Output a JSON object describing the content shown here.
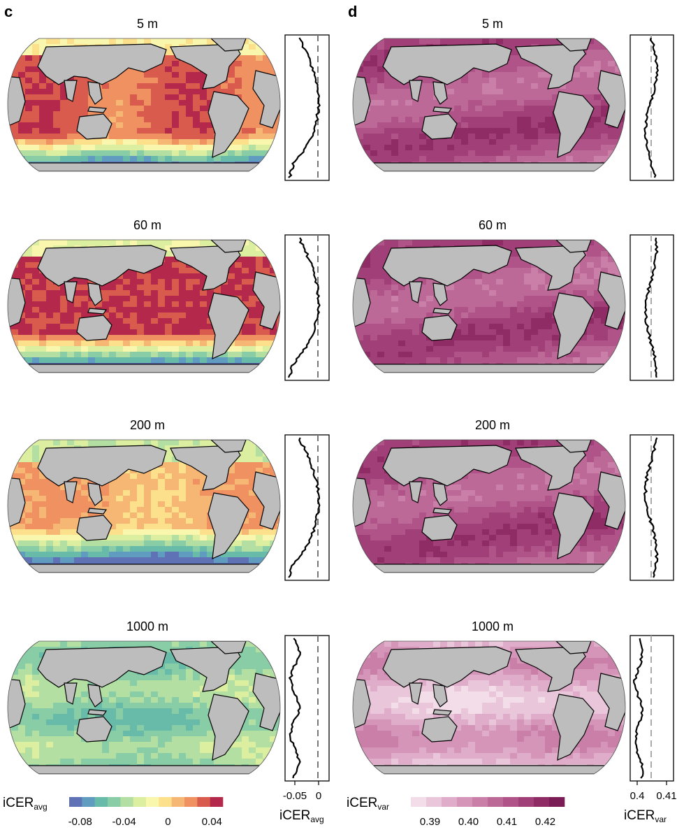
{
  "panels": [
    {
      "letter": "c",
      "variable": "avg",
      "depths": [
        "5 m",
        "60 m",
        "200 m",
        "1000 m"
      ],
      "colorbar": {
        "label_main": "iCER",
        "label_sub": "avg",
        "ticks": [
          "-0.08",
          "-0.04",
          "0",
          "0.04"
        ],
        "tick_values": [
          -0.08,
          -0.04,
          0,
          0.04
        ],
        "range": [
          -0.09,
          0.05
        ],
        "colors": [
          "#5e72b5",
          "#5f9cc0",
          "#69bba9",
          "#88cda6",
          "#b3dfa2",
          "#dcefa0",
          "#f8f7ad",
          "#fce08c",
          "#f6b774",
          "#ef9161",
          "#d95b4e",
          "#b4294b"
        ]
      },
      "profile_axis": {
        "ticks": [
          "-0.05",
          "0"
        ],
        "tick_values": [
          -0.05,
          0
        ],
        "label_main": "iCER",
        "label_sub": "avg"
      }
    },
    {
      "letter": "d",
      "variable": "var",
      "depths": [
        "5 m",
        "60 m",
        "200 m",
        "1000 m"
      ],
      "colorbar": {
        "label_main": "iCER",
        "label_sub": "var",
        "ticks": [
          "0.39",
          "0.40",
          "0.41",
          "0.42"
        ],
        "tick_values": [
          0.39,
          0.4,
          0.41,
          0.42
        ],
        "range": [
          0.385,
          0.425
        ],
        "colors": [
          "#f2dde8",
          "#e9c6da",
          "#dfadc9",
          "#d495b8",
          "#c97fa8",
          "#bd6998",
          "#b05388",
          "#a13f78",
          "#8f2c66",
          "#7a1c55"
        ]
      },
      "profile_axis": {
        "ticks": [
          "0.4",
          "0.41"
        ],
        "tick_values": [
          0.4,
          0.41
        ],
        "label_main": "iCER",
        "label_sub": "var"
      }
    }
  ],
  "legend_hex": {
    "land": "#bdbdbd",
    "coast": "#000000",
    "reference_line_c": "#777777",
    "reference_line_d": "#aaaaaa"
  }
}
